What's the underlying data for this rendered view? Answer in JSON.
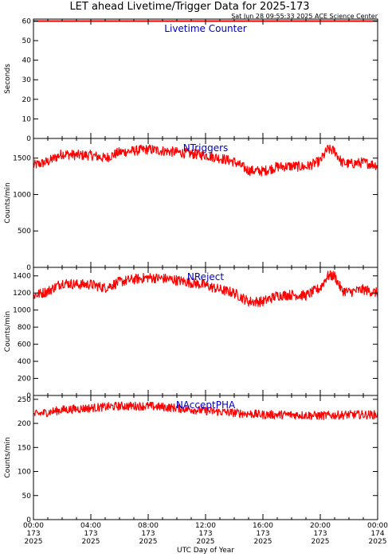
{
  "header": {
    "title": "LET ahead Livetime/Trigger Data for 2025-173",
    "timestamp": "Sat Jun 28 09:55:33 2025 ACE Science Center"
  },
  "xaxis": {
    "label": "UTC Day of Year",
    "ticks": [
      {
        "hours": 0,
        "time": "00:00",
        "doy": "173",
        "year": "2025"
      },
      {
        "hours": 4,
        "time": "04:00",
        "doy": "173",
        "year": "2025"
      },
      {
        "hours": 8,
        "time": "08:00",
        "doy": "173",
        "year": "2025"
      },
      {
        "hours": 12,
        "time": "12:00",
        "doy": "173",
        "year": "2025"
      },
      {
        "hours": 16,
        "time": "16:00",
        "doy": "173",
        "year": "2025"
      },
      {
        "hours": 20,
        "time": "20:00",
        "doy": "173",
        "year": "2025"
      },
      {
        "hours": 24,
        "time": "00:00",
        "doy": "174",
        "year": "2025"
      }
    ]
  },
  "colors": {
    "trace": "#ff0000",
    "label": "#0000cc",
    "axis": "#000000"
  },
  "chart_data": [
    {
      "type": "line",
      "name": "Livetime Counter",
      "ylabel": "Seconds",
      "ylim": [
        0,
        61
      ],
      "yticks": [
        0,
        10,
        20,
        30,
        40,
        50,
        60
      ],
      "x_range_hours": [
        0,
        24
      ],
      "noise": 0,
      "profile_x": [
        0,
        24
      ],
      "profile_y": [
        60,
        60
      ]
    },
    {
      "type": "line",
      "name": "NTriggers",
      "ylabel": "Counts/min",
      "ylim": [
        0,
        1770
      ],
      "yticks": [
        0,
        500,
        1000,
        1500
      ],
      "x_range_hours": [
        0,
        24
      ],
      "noise": 70,
      "profile_x": [
        0,
        1,
        2,
        3,
        4,
        5,
        6,
        7,
        8,
        9,
        10,
        11,
        12,
        13,
        14,
        15,
        16,
        17,
        18,
        19,
        20,
        20.5,
        21,
        21.5,
        22,
        23,
        24
      ],
      "profile_y": [
        1400,
        1450,
        1560,
        1540,
        1540,
        1500,
        1580,
        1600,
        1620,
        1600,
        1580,
        1560,
        1540,
        1500,
        1450,
        1330,
        1320,
        1380,
        1390,
        1380,
        1460,
        1620,
        1600,
        1440,
        1420,
        1440,
        1400
      ]
    },
    {
      "type": "line",
      "name": "NReject",
      "ylabel": "Counts/min",
      "ylim": [
        0,
        1500
      ],
      "yticks": [
        0,
        200,
        400,
        600,
        800,
        1000,
        1200,
        1400
      ],
      "x_range_hours": [
        0,
        24
      ],
      "noise": 60,
      "profile_x": [
        0,
        1,
        2,
        3,
        4,
        5,
        6,
        7,
        8,
        9,
        10,
        11,
        12,
        13,
        14,
        15,
        16,
        17,
        18,
        19,
        20,
        20.5,
        21,
        21.5,
        22,
        23,
        24
      ],
      "profile_y": [
        1170,
        1220,
        1320,
        1300,
        1300,
        1260,
        1330,
        1360,
        1380,
        1370,
        1350,
        1320,
        1290,
        1240,
        1200,
        1100,
        1100,
        1170,
        1180,
        1170,
        1260,
        1400,
        1400,
        1230,
        1210,
        1240,
        1200
      ]
    },
    {
      "type": "line",
      "name": "NAcceptPHA",
      "ylabel": "Counts/min",
      "ylim": [
        0,
        258
      ],
      "yticks": [
        0,
        50,
        100,
        150,
        200,
        250
      ],
      "x_range_hours": [
        0,
        24
      ],
      "noise": 9,
      "profile_x": [
        0,
        2,
        4,
        6,
        8,
        10,
        12,
        14,
        16,
        18,
        20,
        22,
        24
      ],
      "profile_y": [
        218,
        228,
        232,
        236,
        236,
        232,
        226,
        222,
        218,
        218,
        216,
        218,
        218
      ]
    }
  ]
}
